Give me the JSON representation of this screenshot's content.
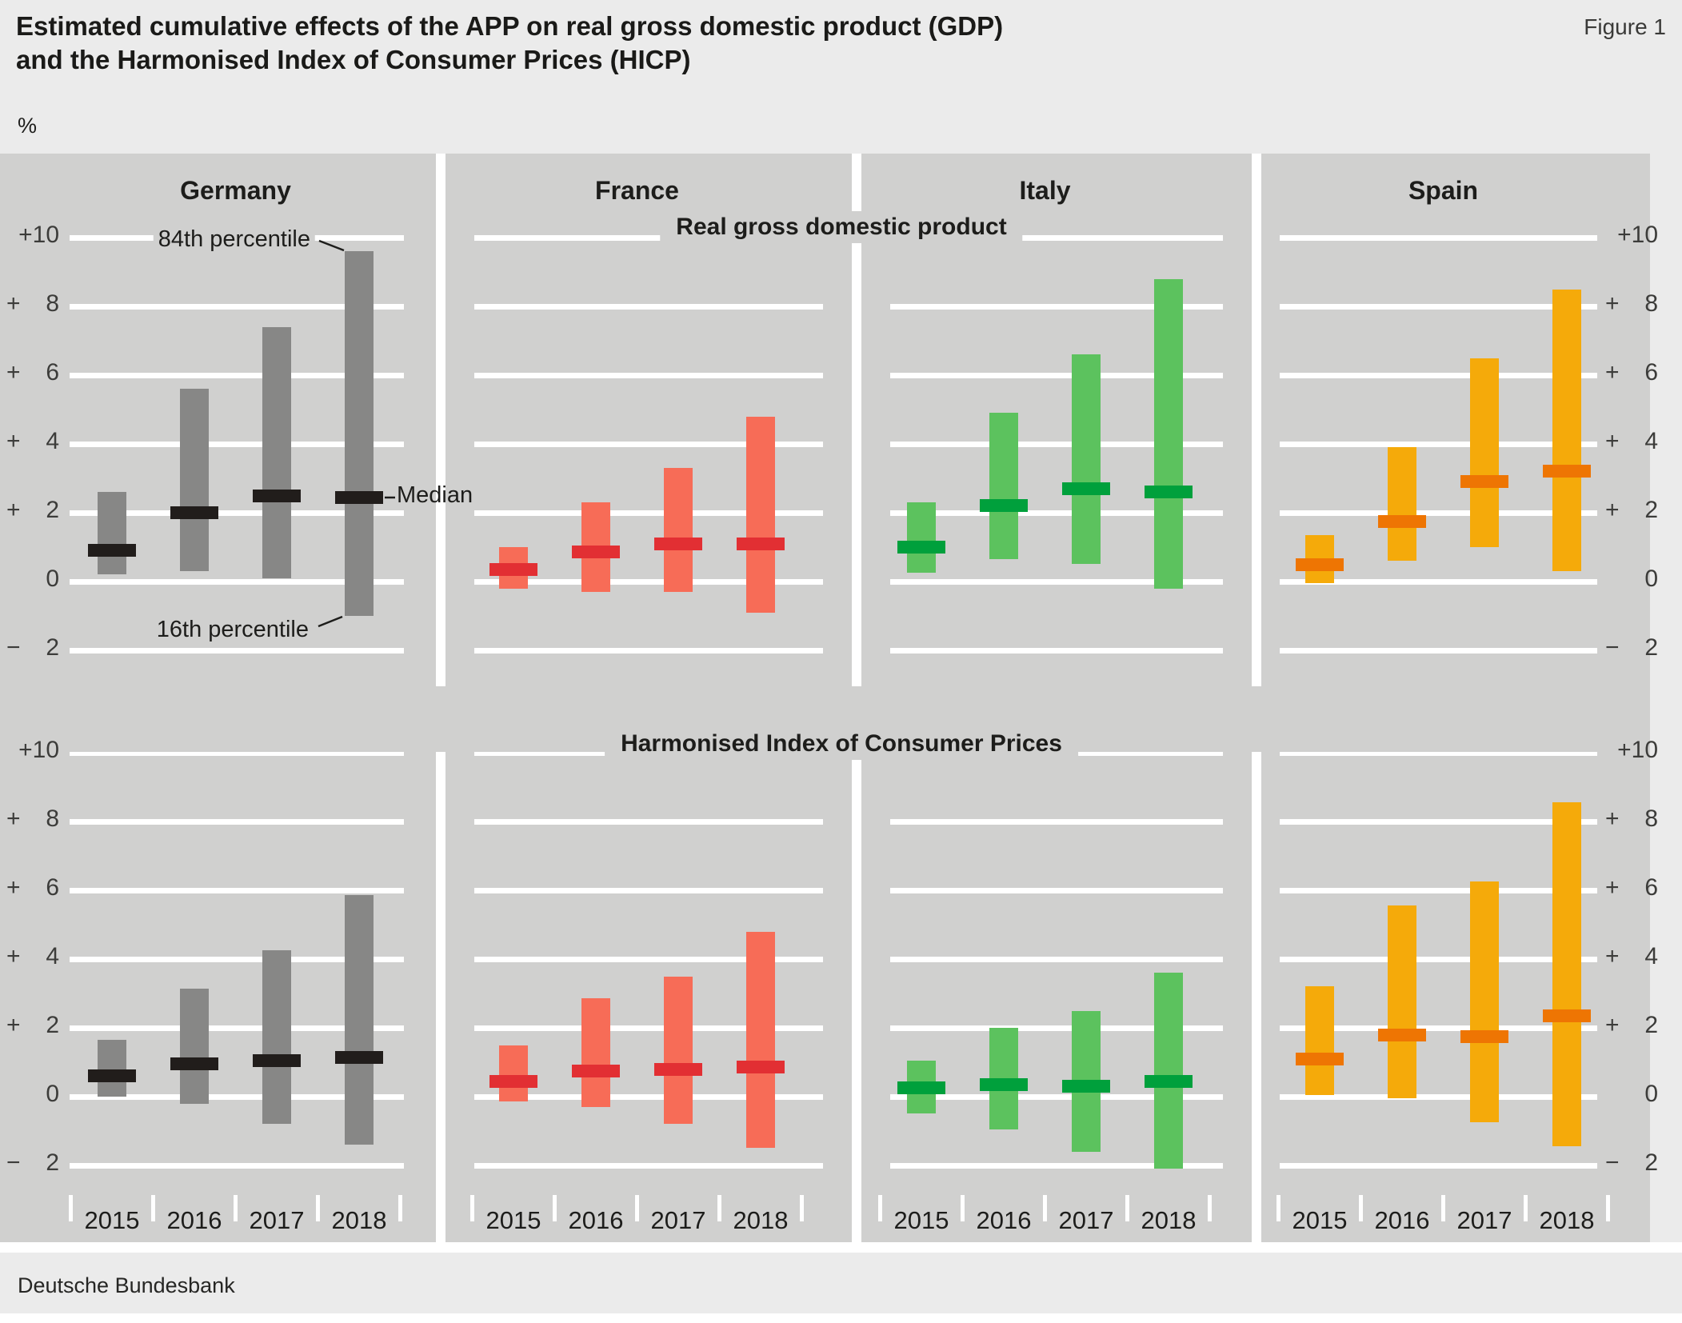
{
  "header": {
    "title_line1": "Estimated cumulative effects of the APP on real gross domestic product (GDP)",
    "title_line2": "and the Harmonised Index of Consumer Prices (HICP)",
    "figure_label": "Figure 1",
    "unit_label": "%"
  },
  "footer": {
    "source": "Deutsche Bundesbank"
  },
  "annotations": {
    "p84_label": "84th percentile",
    "median_label": "Median",
    "p16_label": "16th percentile"
  },
  "y_axis": {
    "tick_labels": [
      "+10",
      "+ 8",
      "+ 6",
      "+ 4",
      "+ 2",
      "0",
      "− 2"
    ],
    "tick_values": [
      10,
      8,
      6,
      4,
      2,
      0,
      -2
    ]
  },
  "x_axis": {
    "years": [
      "2015",
      "2016",
      "2017",
      "2018"
    ]
  },
  "colors": {
    "page_bg": "#ebebeb",
    "panel_bg": "#d0d0cf",
    "gridline": "#ffffff",
    "germany_bar": "#878786",
    "germany_median": "#211d1b",
    "france_bar": "#f76c57",
    "france_median": "#e22f33",
    "italy_bar": "#5cc25e",
    "italy_median": "#00a03c",
    "spain_bar": "#f5aa0a",
    "spain_median": "#ee7503",
    "text_dark": "#1d1d1b",
    "text_axis": "#3c3c3a"
  },
  "chart_data": {
    "type": "bar",
    "subtype": "floating range bars (16th to 84th percentile) with median markers",
    "unit": "%",
    "years": [
      "2015",
      "2016",
      "2017",
      "2018"
    ],
    "y_range": [
      -2,
      10
    ],
    "grid_values": [
      10,
      8,
      6,
      4,
      2,
      0,
      -2
    ],
    "grid": true,
    "sections": [
      {
        "title": "Real gross domestic product",
        "series": [
          {
            "country": "Germany",
            "color_key": "germany",
            "p16": [
              0.2,
              0.3,
              0.1,
              -1.0
            ],
            "p84": [
              2.6,
              5.6,
              7.4,
              9.6
            ],
            "median": [
              0.9,
              2.0,
              2.5,
              2.45
            ]
          },
          {
            "country": "France",
            "color_key": "france",
            "p16": [
              -0.2,
              -0.3,
              -0.3,
              -0.9
            ],
            "p84": [
              1.0,
              2.3,
              3.3,
              4.8
            ],
            "median": [
              0.35,
              0.85,
              1.1,
              1.1
            ]
          },
          {
            "country": "Italy",
            "color_key": "italy",
            "p16": [
              0.25,
              0.65,
              0.5,
              -0.2
            ],
            "p84": [
              2.3,
              4.9,
              6.6,
              8.8
            ],
            "median": [
              1.0,
              2.2,
              2.7,
              2.6
            ]
          },
          {
            "country": "Spain",
            "color_key": "spain",
            "p16": [
              -0.05,
              0.6,
              1.0,
              0.3
            ],
            "p84": [
              1.35,
              3.9,
              6.5,
              8.5
            ],
            "median": [
              0.5,
              1.75,
              2.9,
              3.2
            ]
          }
        ]
      },
      {
        "title": "Harmonised Index of Consumer Prices",
        "series": [
          {
            "country": "Germany",
            "color_key": "germany",
            "p16": [
              0.0,
              -0.2,
              -0.8,
              -1.4
            ],
            "p84": [
              1.65,
              3.15,
              4.25,
              5.85
            ],
            "median": [
              0.6,
              0.95,
              1.05,
              1.15
            ]
          },
          {
            "country": "France",
            "color_key": "france",
            "p16": [
              -0.15,
              -0.3,
              -0.8,
              -1.5
            ],
            "p84": [
              1.5,
              2.85,
              3.5,
              4.8
            ],
            "median": [
              0.45,
              0.75,
              0.8,
              0.85
            ]
          },
          {
            "country": "Italy",
            "color_key": "italy",
            "p16": [
              -0.5,
              -0.95,
              -1.6,
              -2.1
            ],
            "p84": [
              1.05,
              2.0,
              2.5,
              3.6
            ],
            "median": [
              0.25,
              0.35,
              0.3,
              0.45
            ]
          },
          {
            "country": "Spain",
            "color_key": "spain",
            "p16": [
              0.05,
              -0.05,
              -0.75,
              -1.45
            ],
            "p84": [
              3.2,
              5.55,
              6.25,
              8.55
            ],
            "median": [
              1.1,
              1.8,
              1.75,
              2.35
            ]
          }
        ]
      }
    ]
  }
}
